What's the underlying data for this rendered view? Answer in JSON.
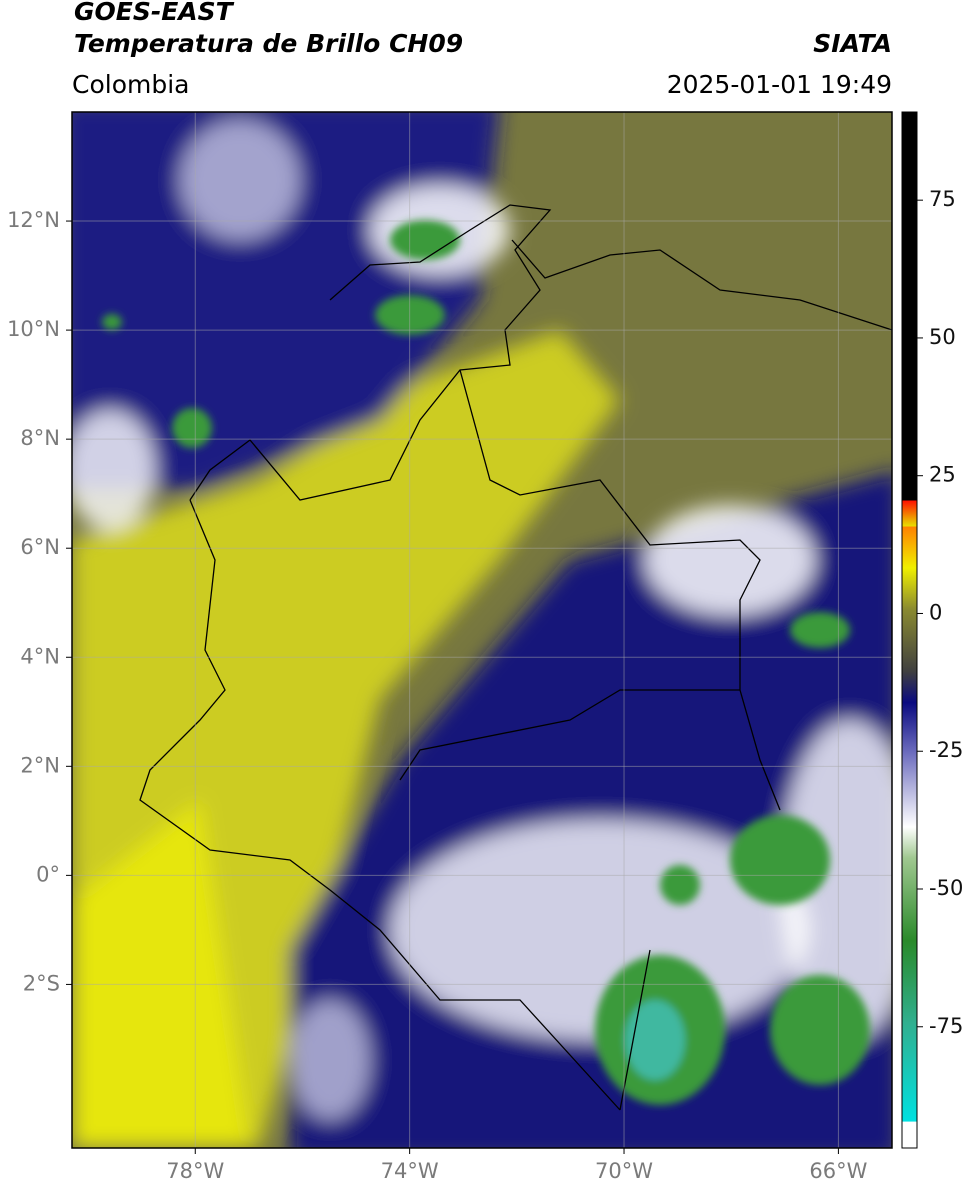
{
  "header": {
    "title_line1": "GOES-EAST",
    "title_line2": "Temperatura de Brillo CH09",
    "source": "SIATA",
    "region": "Colombia",
    "datetime": "2025-01-01 19:49"
  },
  "map": {
    "xlim": [
      -80.3,
      -65
    ],
    "ylim": [
      -5,
      14
    ],
    "xticks": [
      {
        "value": -78,
        "label": "78°W"
      },
      {
        "value": -74,
        "label": "74°W"
      },
      {
        "value": -70,
        "label": "70°W"
      },
      {
        "value": -66,
        "label": "66°W"
      }
    ],
    "yticks": [
      {
        "value": 12,
        "label": "12°N"
      },
      {
        "value": 10,
        "label": "10°N"
      },
      {
        "value": 8,
        "label": "8°N"
      },
      {
        "value": 6,
        "label": "6°N"
      },
      {
        "value": 4,
        "label": "4°N"
      },
      {
        "value": 2,
        "label": "2°N"
      },
      {
        "value": 0,
        "label": "0°"
      },
      {
        "value": -2,
        "label": "2°S"
      }
    ],
    "grid": true
  },
  "colorbar": {
    "lim": [
      -97,
      91
    ],
    "ticks": [
      75,
      50,
      25,
      0,
      -25,
      -50,
      -75
    ]
  }
}
